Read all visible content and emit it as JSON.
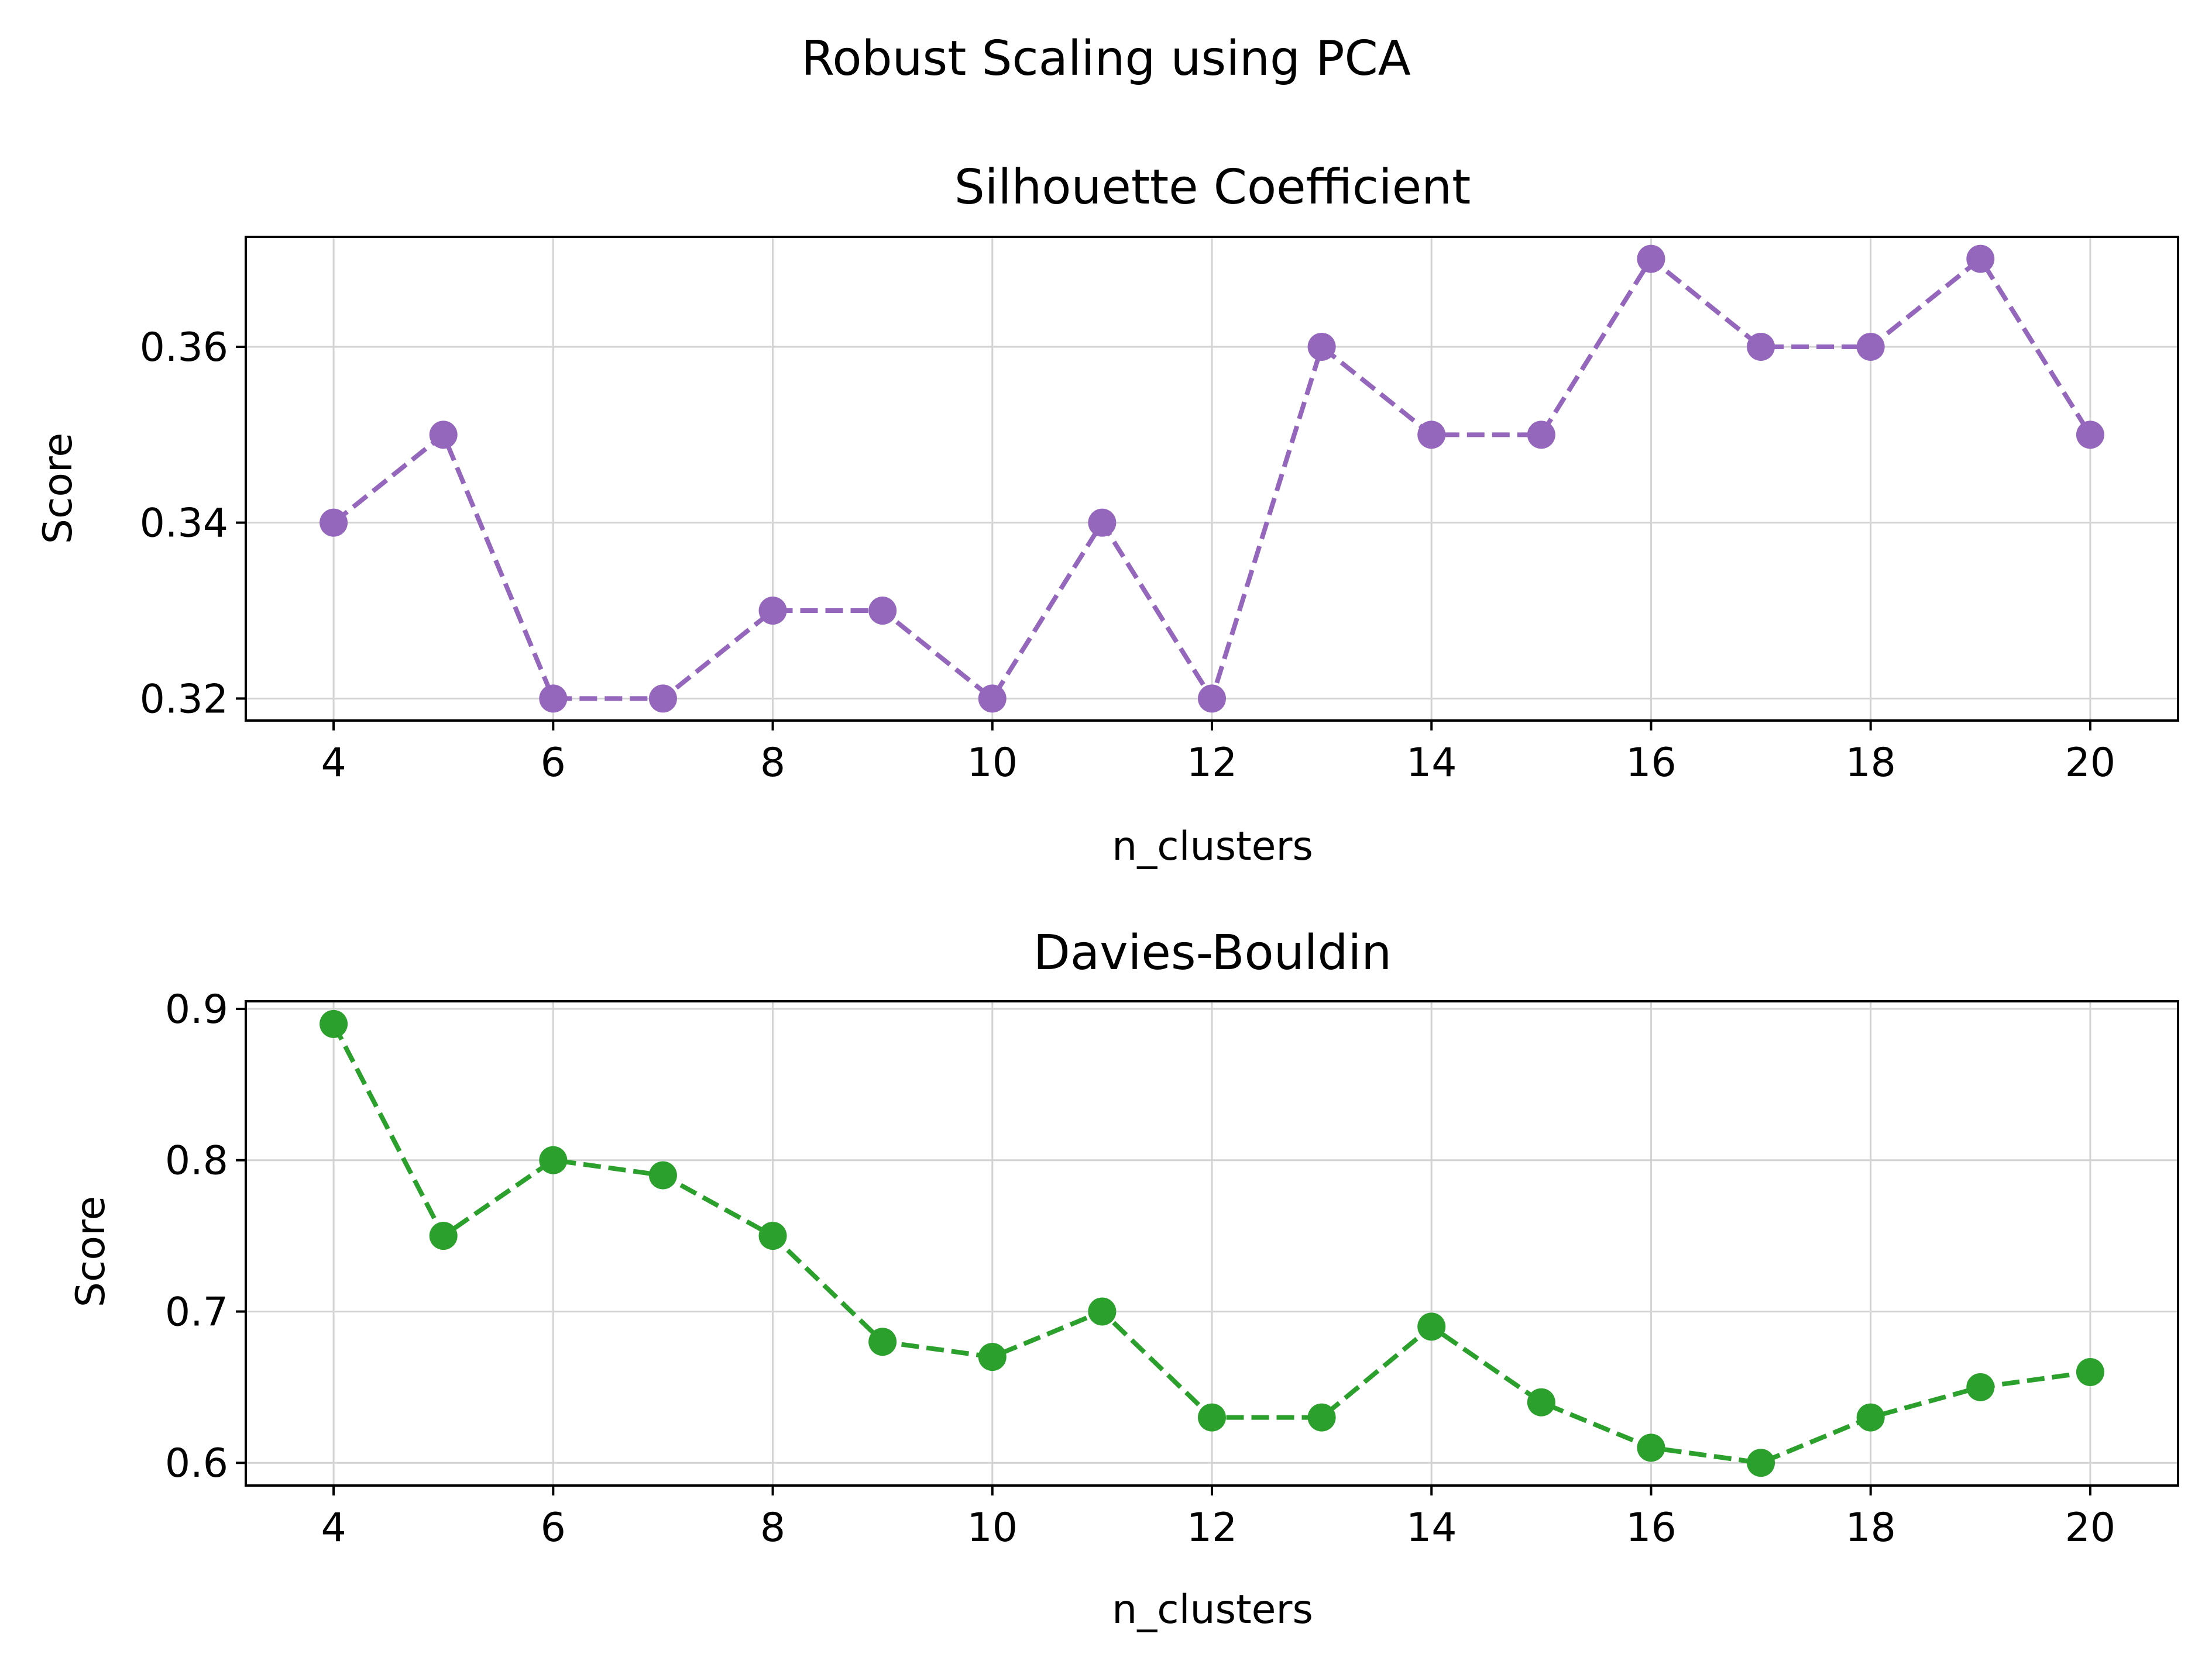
{
  "figure": {
    "suptitle": "Robust Scaling using PCA"
  },
  "colors": {
    "silhouette": "#9467bd",
    "davies": "#2ca02c",
    "grid": "#d3d3d3",
    "axis": "#000000"
  },
  "chart_data": [
    {
      "type": "line",
      "title": "Silhouette Coefficient",
      "xlabel": "n_clusters",
      "ylabel": "Score",
      "line_style": "dashed",
      "marker": "circle",
      "color": "#9467bd",
      "grid": true,
      "xlim": [
        3.2,
        20.8
      ],
      "ylim": [
        0.3175,
        0.3725
      ],
      "xticks": [
        4,
        6,
        8,
        10,
        12,
        14,
        16,
        18,
        20
      ],
      "yticks": [
        0.32,
        0.34,
        0.36
      ],
      "ytick_labels": [
        "0.32",
        "0.34",
        "0.36"
      ],
      "x": [
        4,
        5,
        6,
        7,
        8,
        9,
        10,
        11,
        12,
        13,
        14,
        15,
        16,
        17,
        18,
        19,
        20
      ],
      "values": [
        0.34,
        0.35,
        0.32,
        0.32,
        0.33,
        0.33,
        0.32,
        0.34,
        0.32,
        0.36,
        0.35,
        0.35,
        0.37,
        0.36,
        0.36,
        0.37,
        0.35
      ]
    },
    {
      "type": "line",
      "title": "Davies-Bouldin",
      "xlabel": "n_clusters",
      "ylabel": "Score",
      "line_style": "dashed",
      "marker": "circle",
      "color": "#2ca02c",
      "grid": true,
      "xlim": [
        3.2,
        20.8
      ],
      "ylim": [
        0.585,
        0.905
      ],
      "xticks": [
        4,
        6,
        8,
        10,
        12,
        14,
        16,
        18,
        20
      ],
      "yticks": [
        0.6,
        0.7,
        0.8,
        0.9
      ],
      "ytick_labels": [
        "0.6",
        "0.7",
        "0.8",
        "0.9"
      ],
      "x": [
        4,
        5,
        6,
        7,
        8,
        9,
        10,
        11,
        12,
        13,
        14,
        15,
        16,
        17,
        18,
        19,
        20
      ],
      "values": [
        0.89,
        0.75,
        0.8,
        0.79,
        0.75,
        0.68,
        0.67,
        0.7,
        0.63,
        0.63,
        0.69,
        0.64,
        0.61,
        0.6,
        0.63,
        0.65,
        0.66
      ]
    }
  ]
}
